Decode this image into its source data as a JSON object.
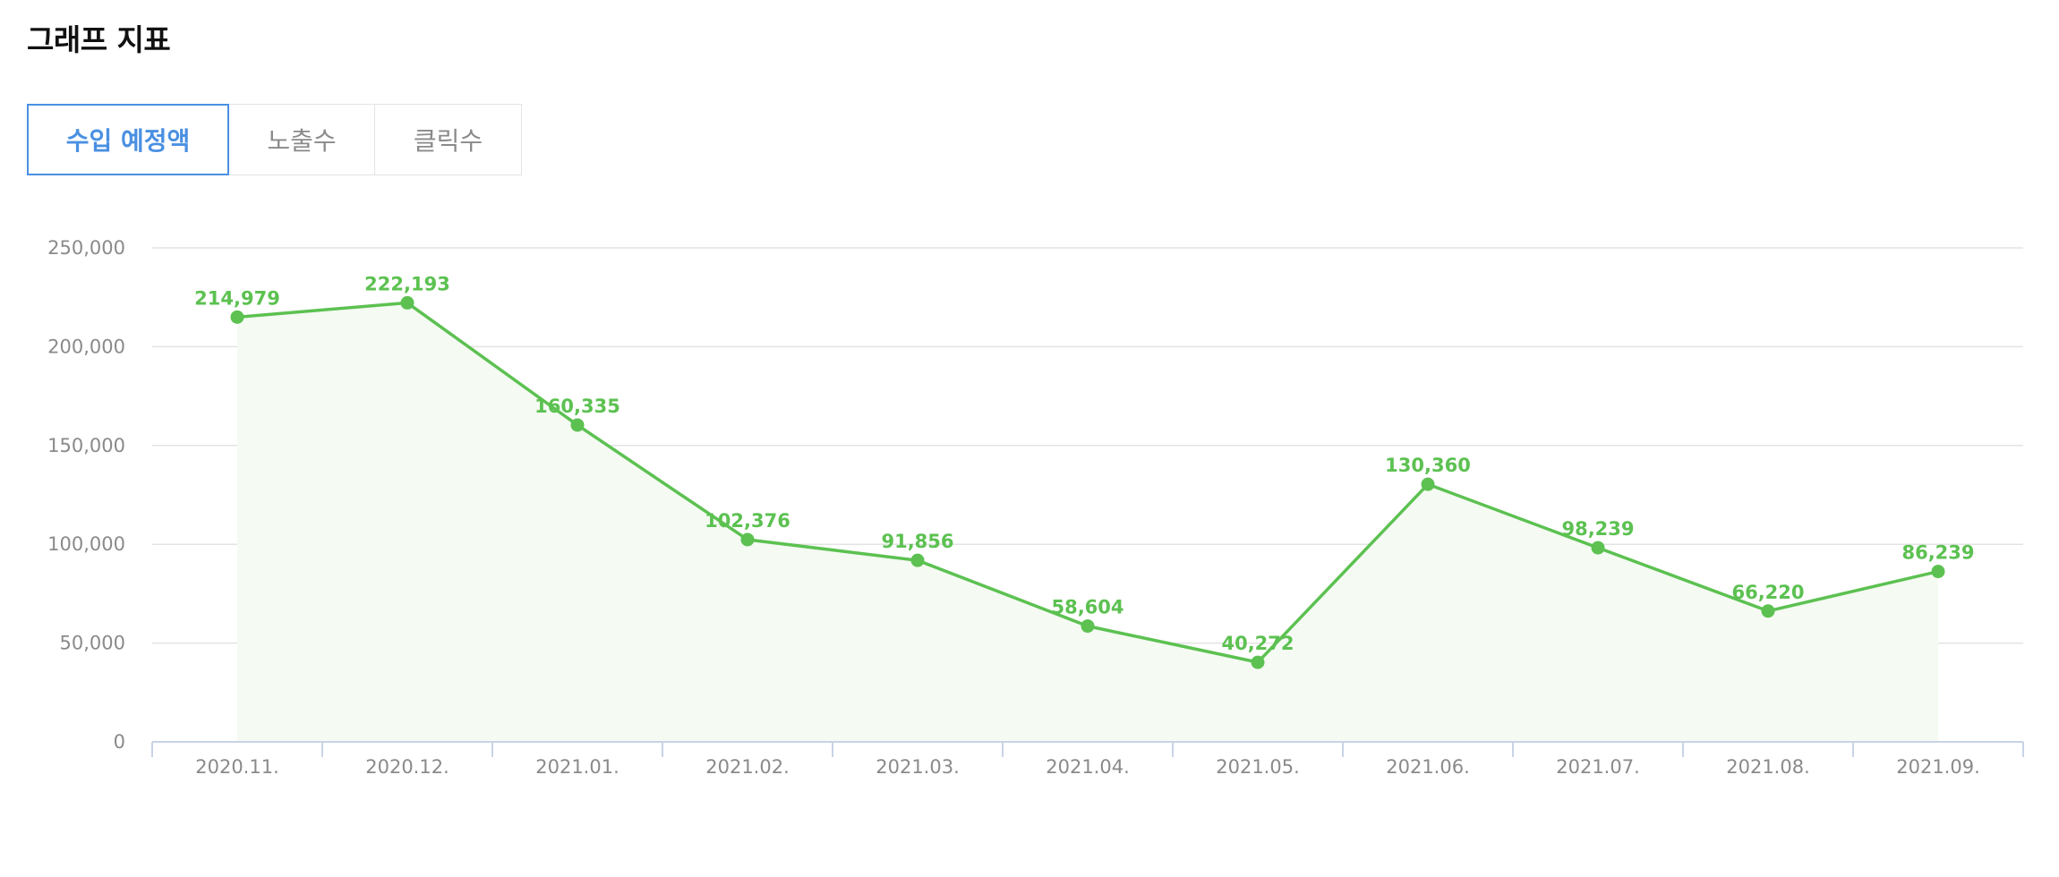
{
  "page": {
    "title": "그래프 지표"
  },
  "tabs": [
    {
      "label": "수입 예정액",
      "active": true
    },
    {
      "label": "노출수",
      "active": false
    },
    {
      "label": "클릭수",
      "active": false
    }
  ],
  "colors": {
    "series": "#5cc151",
    "area": "#f5faf3",
    "grid": "#e3e3e3",
    "axis": "#c9d3e6",
    "active_tab": "#4a90e2"
  },
  "chart_data": {
    "type": "line",
    "title": "",
    "xlabel": "",
    "ylabel": "",
    "ylim": [
      0,
      250000
    ],
    "yticks": [
      0,
      50000,
      100000,
      150000,
      200000,
      250000
    ],
    "ytick_labels": [
      "0",
      "50,000",
      "100,000",
      "150,000",
      "200,000",
      "250,000"
    ],
    "categories": [
      "2020.11.",
      "2020.12.",
      "2021.01.",
      "2021.02.",
      "2021.03.",
      "2021.04.",
      "2021.05.",
      "2021.06.",
      "2021.07.",
      "2021.08.",
      "2021.09."
    ],
    "values": [
      214979,
      222193,
      160335,
      102376,
      91856,
      58604,
      40272,
      130360,
      98239,
      66220,
      86239
    ],
    "value_labels": [
      "214,979",
      "222,193",
      "160,335",
      "102,376",
      "91,856",
      "58,604",
      "40,272",
      "130,360",
      "98,239",
      "66,220",
      "86,239"
    ],
    "grid": true,
    "area_fill": true
  }
}
